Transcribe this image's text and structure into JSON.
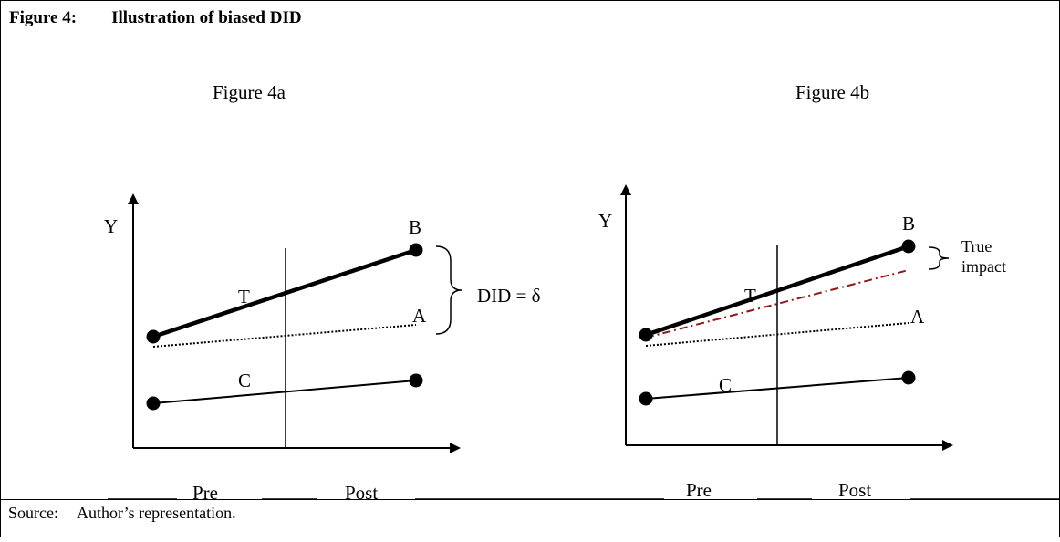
{
  "figure": {
    "number": "Figure 4:",
    "title": "Illustration of biased DID"
  },
  "source": {
    "label": "Source:",
    "text": "Author’s representation."
  },
  "panels": [
    {
      "title": "Figure 4a",
      "y_axis_label": "Y",
      "period_pre": "Pre",
      "period_post": "Post",
      "lines": {
        "treatment": "T",
        "control": "C",
        "observed_end": "B",
        "counterfactual_end": "A"
      },
      "brace_label": "DID = δ"
    },
    {
      "title": "Figure 4b",
      "y_axis_label": "Y",
      "period_pre": "Pre",
      "period_post": "Post",
      "lines": {
        "treatment": "T",
        "control": "C",
        "observed_end": "B",
        "counterfactual_end": "A"
      },
      "brace_label_line1": "True",
      "brace_label_line2": "impact",
      "colors": {
        "true_counterfactual": "#8B1A1A"
      }
    }
  ]
}
